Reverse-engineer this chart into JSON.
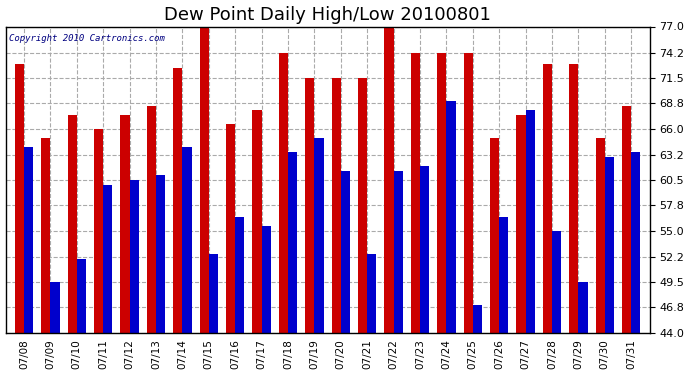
{
  "title": "Dew Point Daily High/Low 20100801",
  "copyright": "Copyright 2010 Cartronics.com",
  "dates": [
    "07/08",
    "07/09",
    "07/10",
    "07/11",
    "07/12",
    "07/13",
    "07/14",
    "07/15",
    "07/16",
    "07/17",
    "07/18",
    "07/19",
    "07/20",
    "07/21",
    "07/22",
    "07/23",
    "07/24",
    "07/25",
    "07/26",
    "07/27",
    "07/28",
    "07/29",
    "07/30",
    "07/31"
  ],
  "highs": [
    73.0,
    65.0,
    67.5,
    66.0,
    67.5,
    68.5,
    72.5,
    77.0,
    66.5,
    68.0,
    74.2,
    71.5,
    71.5,
    71.5,
    77.0,
    74.2,
    74.2,
    74.2,
    65.0,
    67.5,
    73.0,
    73.0,
    65.0,
    68.5
  ],
  "lows": [
    64.0,
    49.5,
    52.0,
    60.0,
    60.5,
    61.0,
    64.0,
    52.5,
    56.5,
    55.5,
    63.5,
    65.0,
    61.5,
    52.5,
    61.5,
    62.0,
    69.0,
    47.0,
    56.5,
    68.0,
    55.0,
    49.5,
    63.0,
    63.5
  ],
  "bar_color_high": "#cc0000",
  "bar_color_low": "#0000cc",
  "ymin": 44.0,
  "ymax": 77.0,
  "yticks": [
    44.0,
    46.8,
    49.5,
    52.2,
    55.0,
    57.8,
    60.5,
    63.2,
    66.0,
    68.8,
    71.5,
    74.2,
    77.0
  ],
  "background_color": "#ffffff",
  "grid_color": "#aaaaaa",
  "bar_width": 0.35,
  "title_fontsize": 13,
  "figwidth": 6.9,
  "figheight": 3.75,
  "dpi": 100
}
